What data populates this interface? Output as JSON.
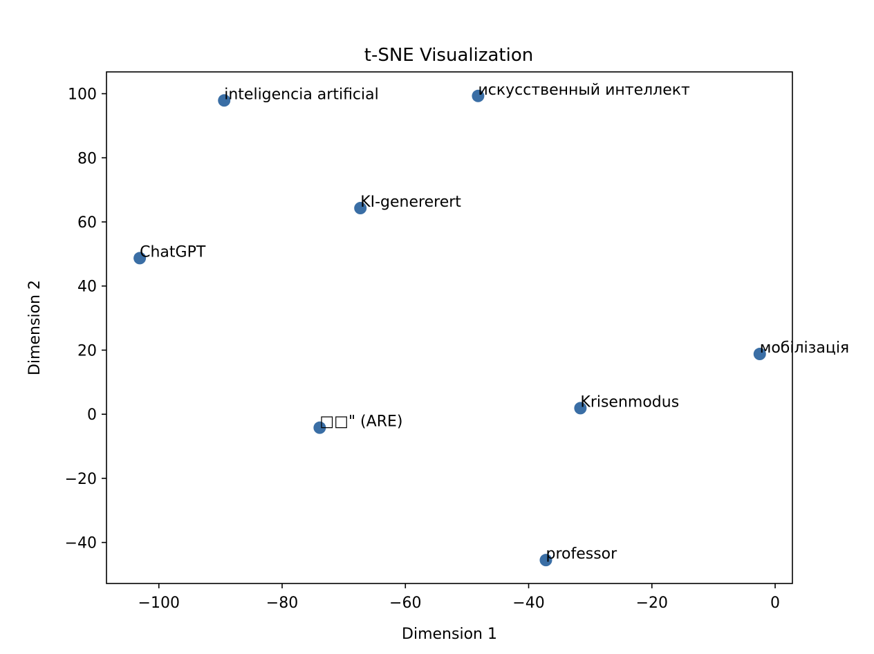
{
  "chart_data": {
    "type": "scatter",
    "title": "t-SNE Visualization",
    "xlabel": "Dimension 1",
    "ylabel": "Dimension 2",
    "xlim": [
      -108.5,
      2.8
    ],
    "ylim": [
      -52.8,
      106.8
    ],
    "xticks": [
      -100,
      -80,
      -60,
      -40,
      -20,
      0
    ],
    "yticks": [
      -40,
      -20,
      0,
      20,
      40,
      60,
      80,
      100
    ],
    "grid": false,
    "legend": "none",
    "marker_color": "#3a6ea5",
    "points": [
      {
        "label": "inteligencia artificial",
        "x": -89.4,
        "y": 97.9
      },
      {
        "label": "искусственный интеллект",
        "x": -48.2,
        "y": 99.3
      },
      {
        "label": "KI-genererert",
        "x": -67.3,
        "y": 64.3
      },
      {
        "label": "ChatGPT",
        "x": -103.1,
        "y": 48.7
      },
      {
        "label": "мобілізація",
        "x": -2.5,
        "y": 18.8
      },
      {
        "label": "Krisenmodus",
        "x": -31.6,
        "y": 1.9
      },
      {
        "label": "□□\" (ARE)",
        "x": -73.9,
        "y": -4.2
      },
      {
        "label": "professor",
        "x": -37.2,
        "y": -45.5
      }
    ]
  }
}
